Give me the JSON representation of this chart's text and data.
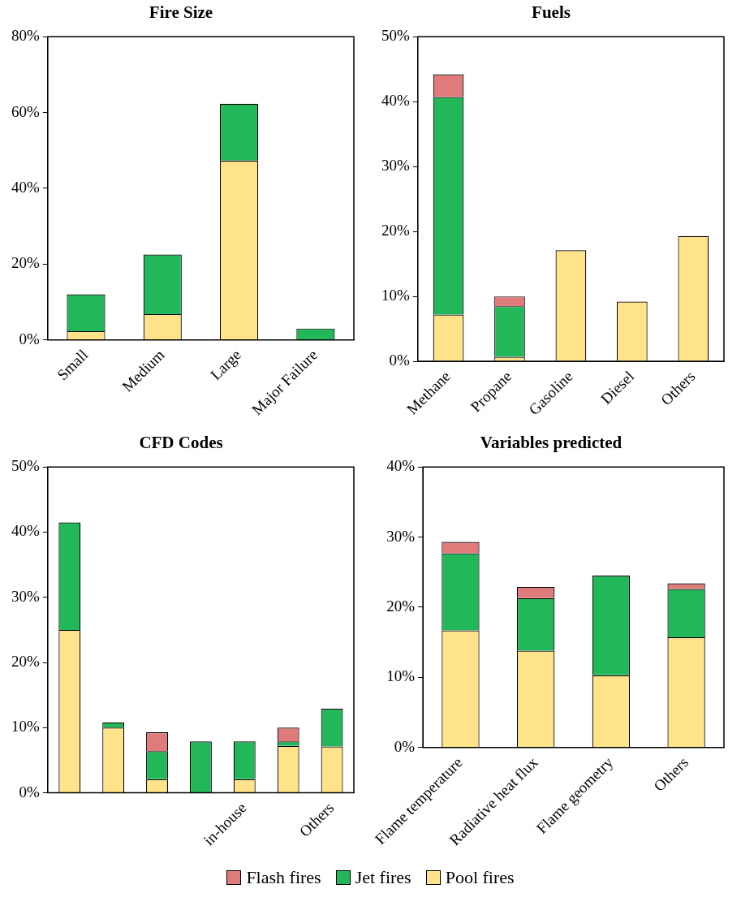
{
  "chart_data": [
    {
      "type": "bar",
      "title": "Fire Size",
      "stacked": true,
      "categories": [
        "Small",
        "Medium",
        "Large",
        "Major Failure"
      ],
      "series": [
        {
          "color": "#ffe38a",
          "values": [
            2.3,
            6.8,
            47.3,
            0
          ]
        },
        {
          "color": "#22b85a",
          "values": [
            9.7,
            15.7,
            15,
            3
          ]
        }
      ],
      "ylim": [
        0,
        80
      ],
      "yticks": [
        {
          "value": 0,
          "label": "0%"
        },
        {
          "value": 20,
          "label": "20%"
        },
        {
          "value": 40,
          "label": "40%"
        },
        {
          "value": 60,
          "label": "60%"
        },
        {
          "value": 80,
          "label": "80%"
        }
      ],
      "grid": false
    },
    {
      "type": "bar",
      "title": "Fuels",
      "stacked": true,
      "categories": [
        "Methane",
        "Propane",
        "Gasoline",
        "Diesel",
        "Others"
      ],
      "series": [
        {
          "color": "#ffe38a",
          "values": [
            7.2,
            0.7,
            17.1,
            9.2,
            19.3
          ]
        },
        {
          "color": "#22b85a",
          "values": [
            33.5,
            7.8,
            0,
            0,
            0
          ]
        },
        {
          "color": "#e07b7b",
          "values": [
            3.5,
            1.5,
            0,
            0,
            0
          ]
        }
      ],
      "ylim": [
        0,
        50
      ],
      "yticks": [
        {
          "value": 0,
          "label": "0%"
        },
        {
          "value": 10,
          "label": "10%"
        },
        {
          "value": 20,
          "label": "20%"
        },
        {
          "value": 30,
          "label": "30%"
        },
        {
          "value": 40,
          "label": "40%"
        },
        {
          "value": 50,
          "label": "50%"
        }
      ],
      "grid": false
    },
    {
      "type": "bar",
      "title": "CFD Codes",
      "stacked": true,
      "categories": [
        null,
        null,
        null,
        null,
        "in-house",
        null,
        "Others"
      ],
      "series": [
        {
          "color": "#ffe38a",
          "values": [
            25,
            10,
            2.1,
            0,
            2.1,
            7.2,
            7.1
          ]
        },
        {
          "color": "#22b85a",
          "values": [
            16.5,
            0.8,
            4.3,
            7.9,
            5.8,
            0.7,
            5.8
          ]
        },
        {
          "color": "#e07b7b",
          "values": [
            0,
            0,
            2.9,
            0,
            0,
            2.1,
            0
          ]
        }
      ],
      "ylim": [
        0,
        50
      ],
      "yticks": [
        {
          "value": 0,
          "label": "0%"
        },
        {
          "value": 10,
          "label": "10%"
        },
        {
          "value": 20,
          "label": "20%"
        },
        {
          "value": 30,
          "label": "30%"
        },
        {
          "value": 40,
          "label": "40%"
        },
        {
          "value": 50,
          "label": "50%"
        }
      ],
      "grid": false
    },
    {
      "type": "bar",
      "title": "Variables predicted",
      "stacked": true,
      "categories": [
        "Flame temperature",
        "Radiative heat flux",
        "Flame geometry",
        "Others"
      ],
      "series": [
        {
          "name": "Pool fires",
          "color": "#ffe38a",
          "values": [
            16.7,
            13.8,
            10.3,
            15.7
          ]
        },
        {
          "name": "Jet fires",
          "color": "#22b85a",
          "values": [
            11,
            7.5,
            14.2,
            6.9
          ]
        },
        {
          "name": "Flash fires",
          "color": "#e07b7b",
          "values": [
            1.6,
            1.6,
            0,
            0.8
          ]
        }
      ],
      "ylim": [
        0,
        40
      ],
      "yticks": [
        {
          "value": 0,
          "label": "0%"
        },
        {
          "value": 10,
          "label": "10%"
        },
        {
          "value": 20,
          "label": "20%"
        },
        {
          "value": 30,
          "label": "30%"
        },
        {
          "value": 40,
          "label": "40%"
        }
      ],
      "grid": false,
      "legend": "bottom"
    }
  ]
}
